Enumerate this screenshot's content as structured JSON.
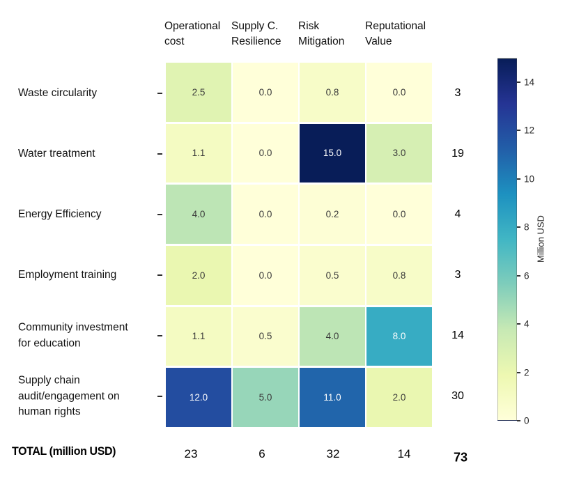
{
  "chart_data": {
    "type": "heatmap",
    "rows": [
      "Waste circularity",
      "Water treatment",
      "Energy Efficiency",
      "Employment training",
      "Community investment\nfor education",
      "Supply chain\naudit/engagement on\nhuman rights"
    ],
    "columns": [
      "Operational\ncost",
      "Supply C.\nResilience",
      "Risk\nMitigation",
      "Reputational\nValue"
    ],
    "values": [
      [
        2.5,
        0.0,
        0.8,
        0.0
      ],
      [
        1.1,
        0.0,
        15.0,
        3.0
      ],
      [
        4.0,
        0.0,
        0.2,
        0.0
      ],
      [
        2.0,
        0.0,
        0.5,
        0.8
      ],
      [
        1.1,
        0.5,
        4.0,
        8.0
      ],
      [
        12.0,
        5.0,
        11.0,
        2.0
      ]
    ],
    "row_totals": [
      3,
      19,
      4,
      3,
      14,
      30
    ],
    "column_totals": [
      23,
      6,
      32,
      14
    ],
    "grand_total": 73,
    "totals_row_label": "TOTAL (million USD)",
    "colorbar": {
      "label": "Million USD",
      "ticks": [
        0,
        2,
        4,
        6,
        8,
        10,
        12,
        14
      ],
      "vmin": 0,
      "vmax": 15,
      "colormap": "YlGnBu",
      "stops": [
        "#ffffd9",
        "#edf8b1",
        "#c7e9b4",
        "#7fcdbb",
        "#41b6c4",
        "#1d91c0",
        "#225ea8",
        "#253494",
        "#081d58"
      ]
    },
    "annotation_decimals": 1,
    "text_colors": {
      "dark": "#3a3a3a",
      "light": "#ffffff"
    },
    "grid_on": false,
    "legend_position": "right-colorbar"
  }
}
